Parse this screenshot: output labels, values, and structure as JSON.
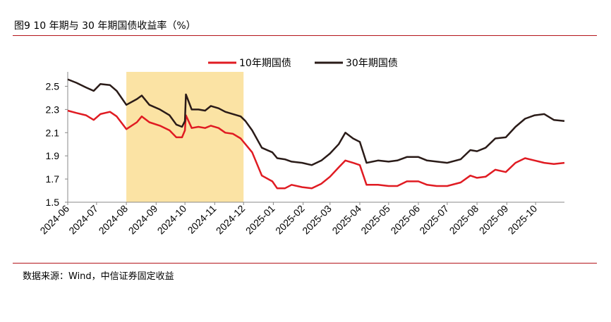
{
  "figure": {
    "title": "图9  10 年期与 30 年期国债收益率（%）",
    "source": "数据来源：Wind，中信证券固定收益"
  },
  "chart_data": {
    "type": "line",
    "title": "",
    "xlabel": "",
    "ylabel": "",
    "ylim": [
      1.5,
      2.6
    ],
    "yticks": [
      "2.5",
      "2.3",
      "2.1",
      "1.9",
      "1.7",
      "1.5"
    ],
    "ytick_values": [
      2.5,
      2.3,
      2.1,
      1.9,
      1.7,
      1.5
    ],
    "xticks": [
      "2024-06",
      "2024-07",
      "2024-08",
      "2024-09",
      "2024-10",
      "2024-11",
      "2024-12",
      "2025-01",
      "2025-02",
      "2025-03",
      "2025-04",
      "2025-05",
      "2025-06",
      "2025-07",
      "2025-08",
      "2025-09",
      "2025-10"
    ],
    "legend_position": "top-center",
    "grid": false,
    "highlight": {
      "from": "2024-08",
      "to": "2024-12",
      "color": "#fbe3a4"
    },
    "series": [
      {
        "name": "10年期国债",
        "color": "#e01b22",
        "points": [
          [
            "2024-06-01",
            2.29
          ],
          [
            "2024-06-10",
            2.27
          ],
          [
            "2024-06-20",
            2.25
          ],
          [
            "2024-06-28",
            2.21
          ],
          [
            "2024-07-05",
            2.26
          ],
          [
            "2024-07-15",
            2.28
          ],
          [
            "2024-07-22",
            2.24
          ],
          [
            "2024-08-01",
            2.13
          ],
          [
            "2024-08-12",
            2.19
          ],
          [
            "2024-08-17",
            2.24
          ],
          [
            "2024-08-25",
            2.19
          ],
          [
            "2024-09-05",
            2.16
          ],
          [
            "2024-09-15",
            2.12
          ],
          [
            "2024-09-22",
            2.06
          ],
          [
            "2024-09-28",
            2.06
          ],
          [
            "2024-10-01",
            2.12
          ],
          [
            "2024-10-02",
            2.25
          ],
          [
            "2024-10-08",
            2.14
          ],
          [
            "2024-10-15",
            2.15
          ],
          [
            "2024-10-22",
            2.14
          ],
          [
            "2024-10-28",
            2.16
          ],
          [
            "2024-11-05",
            2.14
          ],
          [
            "2024-11-12",
            2.1
          ],
          [
            "2024-11-20",
            2.09
          ],
          [
            "2024-11-28",
            2.05
          ],
          [
            "2024-12-03",
            2.0
          ],
          [
            "2024-12-10",
            1.93
          ],
          [
            "2024-12-20",
            1.73
          ],
          [
            "2024-12-31",
            1.68
          ],
          [
            "2025-01-05",
            1.62
          ],
          [
            "2025-01-13",
            1.62
          ],
          [
            "2025-01-20",
            1.65
          ],
          [
            "2025-01-31",
            1.63
          ],
          [
            "2025-02-10",
            1.62
          ],
          [
            "2025-02-20",
            1.66
          ],
          [
            "2025-03-01",
            1.72
          ],
          [
            "2025-03-10",
            1.8
          ],
          [
            "2025-03-17",
            1.86
          ],
          [
            "2025-03-25",
            1.84
          ],
          [
            "2025-04-01",
            1.82
          ],
          [
            "2025-04-08",
            1.65
          ],
          [
            "2025-04-20",
            1.65
          ],
          [
            "2025-05-01",
            1.64
          ],
          [
            "2025-05-10",
            1.64
          ],
          [
            "2025-05-20",
            1.68
          ],
          [
            "2025-06-01",
            1.68
          ],
          [
            "2025-06-10",
            1.65
          ],
          [
            "2025-06-20",
            1.64
          ],
          [
            "2025-07-01",
            1.64
          ],
          [
            "2025-07-15",
            1.67
          ],
          [
            "2025-07-25",
            1.73
          ],
          [
            "2025-08-01",
            1.71
          ],
          [
            "2025-08-10",
            1.72
          ],
          [
            "2025-08-20",
            1.78
          ],
          [
            "2025-08-31",
            1.76
          ],
          [
            "2025-09-10",
            1.84
          ],
          [
            "2025-09-20",
            1.88
          ],
          [
            "2025-09-30",
            1.86
          ],
          [
            "2025-10-10",
            1.84
          ],
          [
            "2025-10-20",
            1.83
          ],
          [
            "2025-10-31",
            1.84
          ]
        ]
      },
      {
        "name": "30年期国债",
        "color": "#2a1b18",
        "points": [
          [
            "2024-06-01",
            2.56
          ],
          [
            "2024-06-10",
            2.53
          ],
          [
            "2024-06-20",
            2.49
          ],
          [
            "2024-06-28",
            2.46
          ],
          [
            "2024-07-05",
            2.52
          ],
          [
            "2024-07-15",
            2.51
          ],
          [
            "2024-07-22",
            2.46
          ],
          [
            "2024-08-01",
            2.34
          ],
          [
            "2024-08-12",
            2.39
          ],
          [
            "2024-08-17",
            2.42
          ],
          [
            "2024-08-25",
            2.34
          ],
          [
            "2024-09-05",
            2.3
          ],
          [
            "2024-09-15",
            2.25
          ],
          [
            "2024-09-22",
            2.17
          ],
          [
            "2024-09-28",
            2.15
          ],
          [
            "2024-10-01",
            2.2
          ],
          [
            "2024-10-02",
            2.43
          ],
          [
            "2024-10-08",
            2.3
          ],
          [
            "2024-10-15",
            2.3
          ],
          [
            "2024-10-22",
            2.29
          ],
          [
            "2024-10-28",
            2.33
          ],
          [
            "2024-11-05",
            2.31
          ],
          [
            "2024-11-12",
            2.28
          ],
          [
            "2024-11-20",
            2.26
          ],
          [
            "2024-11-28",
            2.24
          ],
          [
            "2024-12-03",
            2.2
          ],
          [
            "2024-12-10",
            2.12
          ],
          [
            "2024-12-20",
            1.97
          ],
          [
            "2024-12-31",
            1.93
          ],
          [
            "2025-01-05",
            1.88
          ],
          [
            "2025-01-13",
            1.87
          ],
          [
            "2025-01-20",
            1.85
          ],
          [
            "2025-01-31",
            1.84
          ],
          [
            "2025-02-10",
            1.82
          ],
          [
            "2025-02-20",
            1.86
          ],
          [
            "2025-03-01",
            1.92
          ],
          [
            "2025-03-10",
            2.0
          ],
          [
            "2025-03-17",
            2.1
          ],
          [
            "2025-03-25",
            2.05
          ],
          [
            "2025-04-01",
            2.02
          ],
          [
            "2025-04-08",
            1.84
          ],
          [
            "2025-04-20",
            1.86
          ],
          [
            "2025-05-01",
            1.85
          ],
          [
            "2025-05-10",
            1.86
          ],
          [
            "2025-05-20",
            1.89
          ],
          [
            "2025-06-01",
            1.89
          ],
          [
            "2025-06-10",
            1.86
          ],
          [
            "2025-06-20",
            1.85
          ],
          [
            "2025-07-01",
            1.84
          ],
          [
            "2025-07-15",
            1.87
          ],
          [
            "2025-07-25",
            1.95
          ],
          [
            "2025-08-01",
            1.94
          ],
          [
            "2025-08-10",
            1.97
          ],
          [
            "2025-08-20",
            2.05
          ],
          [
            "2025-08-31",
            2.06
          ],
          [
            "2025-09-10",
            2.15
          ],
          [
            "2025-09-20",
            2.22
          ],
          [
            "2025-09-30",
            2.25
          ],
          [
            "2025-10-10",
            2.26
          ],
          [
            "2025-10-20",
            2.21
          ],
          [
            "2025-10-31",
            2.2
          ]
        ]
      }
    ]
  }
}
